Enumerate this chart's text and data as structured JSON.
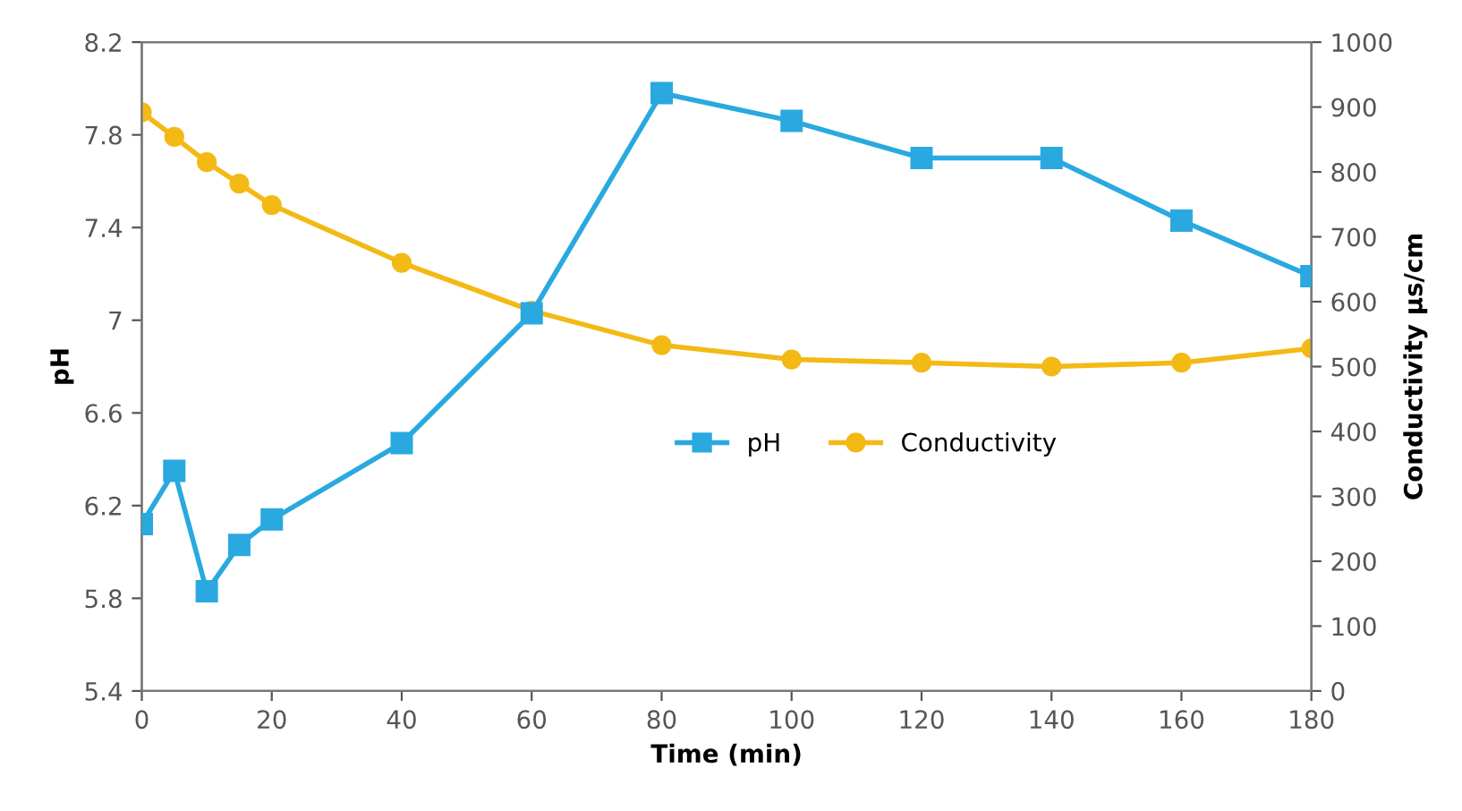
{
  "chart_data": {
    "type": "line",
    "xlabel": "Time (min)",
    "ylabel": "pH",
    "y2label": "Conductivity µs/cm",
    "x": [
      0,
      5,
      10,
      15,
      20,
      40,
      60,
      80,
      100,
      120,
      140,
      160,
      180
    ],
    "series": [
      {
        "name": "pH",
        "color": "#29a9df",
        "marker": "square",
        "values": [
          6.12,
          6.35,
          5.83,
          6.03,
          6.14,
          6.47,
          7.03,
          7.98,
          7.86,
          7.7,
          7.7,
          7.43,
          7.19
        ]
      },
      {
        "name": "Conductivity",
        "color": "#f3b915",
        "marker": "circle",
        "axis": "y2",
        "values": [
          892,
          854,
          815,
          782,
          749,
          660,
          586,
          533,
          511,
          506,
          500,
          506,
          528
        ]
      }
    ],
    "xlim": [
      0,
      180
    ],
    "xticks": [
      0,
      20,
      40,
      60,
      80,
      100,
      120,
      140,
      160,
      180
    ],
    "ylim": [
      5.4,
      8.2
    ],
    "yticks": [
      5.4,
      5.8,
      6.2,
      6.6,
      7,
      7.4,
      7.8,
      8.2
    ],
    "y2lim": [
      0,
      1000
    ],
    "y2ticks": [
      0,
      100,
      200,
      300,
      400,
      500,
      600,
      700,
      800,
      900,
      1000
    ],
    "grid": false,
    "legend": "center",
    "line_style": "solid"
  }
}
